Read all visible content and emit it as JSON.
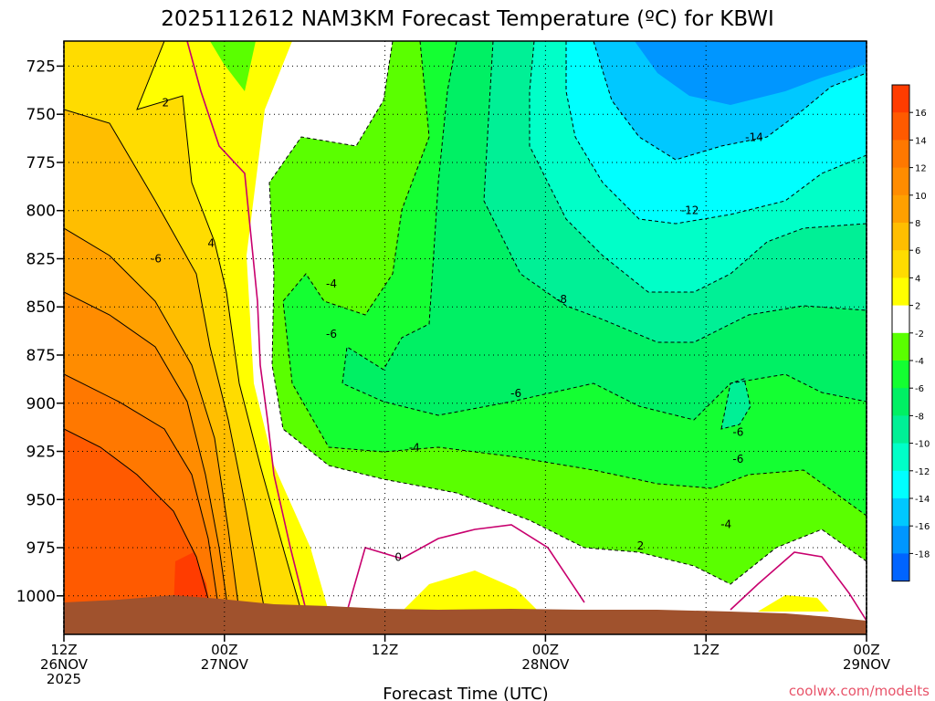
{
  "chart_data": {
    "type": "heatmap",
    "title": "2025112612 NAM3KM Forecast Temperature (ºC) for KBWI",
    "xlabel": "Forecast Time (UTC)",
    "credit": "coolwx.com/modelts",
    "x_ticks": [
      {
        "hour": 0,
        "line1": "12Z",
        "line2": "26NOV",
        "line3": "2025"
      },
      {
        "hour": 12,
        "line1": "00Z",
        "line2": "27NOV",
        "line3": ""
      },
      {
        "hour": 24,
        "line1": "12Z",
        "line2": "",
        "line3": ""
      },
      {
        "hour": 36,
        "line1": "00Z",
        "line2": "28NOV",
        "line3": ""
      },
      {
        "hour": 48,
        "line1": "12Z",
        "line2": "",
        "line3": ""
      },
      {
        "hour": 60,
        "line1": "00Z",
        "line2": "29NOV",
        "line3": ""
      }
    ],
    "xlim_hours": [
      0,
      60
    ],
    "y_ticks": [
      725,
      750,
      775,
      800,
      825,
      850,
      875,
      900,
      925,
      950,
      975,
      1000
    ],
    "ylim_hpa": [
      712,
      1020
    ],
    "colorbar": {
      "labels": [
        "16",
        "14",
        "12",
        "10",
        "8",
        "6",
        "4",
        "2",
        "-2",
        "-4",
        "-6",
        "-8",
        "-10",
        "-12",
        "-14",
        "-16",
        "-18"
      ],
      "bins": [
        {
          "color": "#ff3c00"
        },
        {
          "color": "#ff5a00"
        },
        {
          "color": "#ff7800"
        },
        {
          "color": "#ff8c00"
        },
        {
          "color": "#ffa000"
        },
        {
          "color": "#ffbe00"
        },
        {
          "color": "#ffdc00"
        },
        {
          "color": "#ffff00"
        },
        {
          "color": "#ffffff"
        },
        {
          "color": "#5aff00"
        },
        {
          "color": "#14ff32"
        },
        {
          "color": "#00f064"
        },
        {
          "color": "#00f096"
        },
        {
          "color": "#00ffc8"
        },
        {
          "color": "#00ffff"
        },
        {
          "color": "#00c8ff"
        },
        {
          "color": "#0096ff"
        },
        {
          "color": "#0064ff"
        }
      ]
    },
    "contour_labels": [
      {
        "text": "2",
        "hour": 7.6,
        "hpa": 744
      },
      {
        "text": "4",
        "hour": 11.0,
        "hpa": 817
      },
      {
        "text": "-6",
        "hour": 6.9,
        "hpa": 825
      },
      {
        "text": "-4",
        "hour": 20.0,
        "hpa": 838
      },
      {
        "text": "-6",
        "hour": 20.0,
        "hpa": 864
      },
      {
        "text": "-8",
        "hour": 37.2,
        "hpa": 846
      },
      {
        "text": "-12",
        "hour": 46.8,
        "hpa": 800
      },
      {
        "text": "-14",
        "hour": 51.6,
        "hpa": 762
      },
      {
        "text": "-6",
        "hour": 33.8,
        "hpa": 895
      },
      {
        "text": "-4",
        "hour": 26.2,
        "hpa": 923
      },
      {
        "text": "-6",
        "hour": 50.4,
        "hpa": 915
      },
      {
        "text": "-6",
        "hour": 50.4,
        "hpa": 929
      },
      {
        "text": "-4",
        "hour": 49.5,
        "hpa": 963
      },
      {
        "text": "2",
        "hour": 43.1,
        "hpa": 974
      },
      {
        "text": "0",
        "hour": 25.0,
        "hpa": 980
      }
    ]
  },
  "colors": {
    "ground": "#a0522d",
    "contour_pos": "#000000",
    "contour_freeze": "#c8006e",
    "contour_neg": "#000000"
  }
}
